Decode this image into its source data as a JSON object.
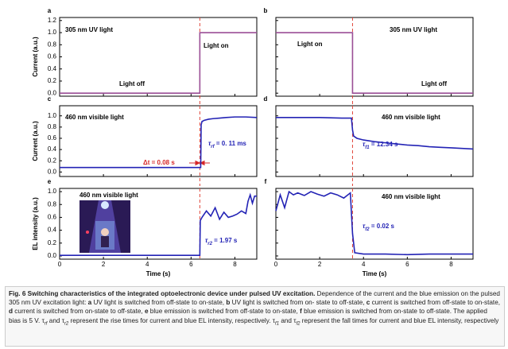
{
  "chart_data": [
    {
      "type": "line",
      "label": "a",
      "ylabel": "Current (a.u.)",
      "xlim": [
        0,
        9
      ],
      "xticks": [
        0,
        2,
        4,
        6,
        8
      ],
      "xtick_labels": false,
      "ylim": [
        -0.05,
        1.25
      ],
      "yticks": [
        {
          "value": 0,
          "label": "0.0"
        },
        {
          "value": 0.2,
          "label": "0.2"
        },
        {
          "value": 0.4,
          "label": "0.4"
        },
        {
          "value": 0.6,
          "label": "0.6"
        },
        {
          "value": 0.8,
          "label": "0.8"
        },
        {
          "value": 1,
          "label": "1.0"
        },
        {
          "value": 1.2,
          "label": "1.2"
        }
      ],
      "vline": 6.4,
      "series": [
        {
          "color": "#9b4f96",
          "x": [
            0,
            6.4,
            6.4,
            9
          ],
          "values": [
            0,
            0,
            1,
            1
          ]
        }
      ],
      "annotations": [
        {
          "text": "305 nm UV light"
        },
        {
          "text": "Light off"
        },
        {
          "text": "Light on"
        }
      ]
    },
    {
      "type": "line",
      "label": "b",
      "xlim": [
        0,
        9
      ],
      "xticks": [
        0,
        2,
        4,
        6,
        8
      ],
      "xtick_labels": false,
      "ylim": [
        -0.05,
        1.25
      ],
      "yticks": [
        0,
        0.2,
        0.4,
        0.6,
        0.8,
        1,
        1.2
      ],
      "ytick_labels": false,
      "vline": 3.5,
      "series": [
        {
          "color": "#9b4f96",
          "x": [
            0,
            3.5,
            3.5,
            9
          ],
          "values": [
            1,
            1,
            0,
            0
          ]
        }
      ],
      "annotations": [
        {
          "text": "305 nm UV light"
        },
        {
          "text": "Light on"
        },
        {
          "text": "Light off"
        }
      ]
    },
    {
      "type": "line",
      "label": "c",
      "ylabel": "Current (a.u.)",
      "xlim": [
        0,
        9
      ],
      "xticks": [
        0,
        2,
        4,
        6,
        8
      ],
      "xtick_labels": false,
      "ylim": [
        -0.08,
        1.18
      ],
      "yticks": [
        {
          "value": 0,
          "label": "0.0"
        },
        {
          "value": 0.2,
          "label": "0.2"
        },
        {
          "value": 0.4,
          "label": "0.4"
        },
        {
          "value": 0.6,
          "label": "0.6"
        },
        {
          "value": 0.8,
          "label": "0.8"
        },
        {
          "value": 1,
          "label": "1.0"
        }
      ],
      "vline": 6.4,
      "series": [
        {
          "color": "#2323b5",
          "x": [
            0,
            2,
            4,
            6,
            6.44,
            6.46,
            6.5,
            6.6,
            6.8,
            7.0,
            7.3,
            7.6,
            8,
            8.5,
            9
          ],
          "values": [
            0.08,
            0.08,
            0.08,
            0.08,
            0.08,
            0.84,
            0.9,
            0.92,
            0.94,
            0.95,
            0.96,
            0.97,
            0.98,
            0.98,
            0.97
          ]
        }
      ],
      "annotations": [
        {
          "text": "460 nm visible light"
        },
        {
          "sym": "τ",
          "sub": "rf",
          "text": " = 0. 11 ms",
          "color": "#2323b5"
        },
        {
          "text": "Δt = 0.08 s",
          "color": "#d62728"
        }
      ]
    },
    {
      "type": "line",
      "label": "d",
      "xlim": [
        0,
        9
      ],
      "xticks": [
        0,
        2,
        4,
        6,
        8
      ],
      "xtick_labels": false,
      "ylim": [
        -0.08,
        1.18
      ],
      "yticks": [
        0,
        0.2,
        0.4,
        0.6,
        0.8,
        1
      ],
      "ytick_labels": false,
      "vline": 3.5,
      "series": [
        {
          "color": "#2323b5",
          "x": [
            0,
            1,
            2,
            3,
            3.45,
            3.5,
            3.55,
            3.7,
            4,
            4.5,
            5,
            5.5,
            6,
            6.5,
            7,
            7.5,
            8,
            8.5,
            9
          ],
          "values": [
            0.97,
            0.97,
            0.97,
            0.96,
            0.96,
            0.75,
            0.64,
            0.6,
            0.57,
            0.54,
            0.52,
            0.5,
            0.48,
            0.47,
            0.45,
            0.44,
            0.43,
            0.42,
            0.41
          ]
        }
      ],
      "annotations": [
        {
          "text": "460 nm visible light"
        },
        {
          "sym": "τ",
          "sub": "f1",
          "text": " = 12.34 s",
          "color": "#2323b5"
        }
      ]
    },
    {
      "type": "line",
      "label": "e",
      "ylabel": "EL intensity (a.u.)",
      "xlabel": "Time (s)",
      "xlim": [
        0,
        9
      ],
      "xticks": [
        0,
        2,
        4,
        6,
        8
      ],
      "xtick_labels": true,
      "ylim": [
        -0.05,
        1.05
      ],
      "yticks": [
        {
          "value": 0,
          "label": "0.0"
        },
        {
          "value": 0.2,
          "label": "0.2"
        },
        {
          "value": 0.4,
          "label": "0.4"
        },
        {
          "value": 0.6,
          "label": "0.6"
        },
        {
          "value": 0.8,
          "label": "0.8"
        },
        {
          "value": 1,
          "label": "1.0"
        }
      ],
      "vline": 6.4,
      "series": [
        {
          "color": "#2323b5",
          "x": [
            0,
            2,
            4,
            6.4,
            6.42,
            6.5,
            6.7,
            6.9,
            7.1,
            7.3,
            7.5,
            7.7,
            7.9,
            8.1,
            8.3,
            8.5,
            8.6,
            8.7,
            8.8,
            8.9,
            9
          ],
          "values": [
            0.01,
            0.01,
            0.01,
            0.01,
            0.55,
            0.6,
            0.7,
            0.62,
            0.75,
            0.57,
            0.68,
            0.6,
            0.62,
            0.65,
            0.7,
            0.66,
            0.85,
            0.95,
            0.82,
            0.93,
            0.93
          ]
        }
      ],
      "annotations": [
        {
          "text": "460 nm visible light"
        },
        {
          "sym": "τ",
          "sub": "r2",
          "text": " = 1.97 s",
          "color": "#2323b5"
        }
      ]
    },
    {
      "type": "line",
      "label": "f",
      "xlabel": "Time (s)",
      "xlim": [
        0,
        9
      ],
      "xticks": [
        0,
        2,
        4,
        6,
        8
      ],
      "xtick_labels": true,
      "ylim": [
        -0.05,
        1.05
      ],
      "yticks": [
        0,
        0.2,
        0.4,
        0.6,
        0.8,
        1
      ],
      "ytick_labels": false,
      "vline": 3.5,
      "series": [
        {
          "color": "#2323b5",
          "x": [
            0,
            0.2,
            0.4,
            0.6,
            0.8,
            1.0,
            1.3,
            1.6,
            1.9,
            2.2,
            2.5,
            2.8,
            3.1,
            3.4,
            3.5,
            3.6,
            4,
            5,
            6,
            7,
            8,
            9
          ],
          "values": [
            0.7,
            0.95,
            0.75,
            1.0,
            0.95,
            0.98,
            0.94,
            1.0,
            0.96,
            0.93,
            0.98,
            0.95,
            0.9,
            0.98,
            0.35,
            0.05,
            0.03,
            0.03,
            0.02,
            0.03,
            0.03,
            0.03
          ]
        }
      ],
      "annotations": [
        {
          "text": "460 nm visible light"
        },
        {
          "sym": "τ",
          "sub": "f2",
          "text": " = 0.02 s",
          "color": "#2323b5"
        }
      ]
    }
  ],
  "caption": {
    "segments": [
      {
        "text": "Fig. 6 Switching characteristics of the integrated optoelectronic device under pulsed UV excitation.",
        "style": "bold"
      },
      {
        "text": " Dependence of the current and the blue emission on the pulsed 305 nm UV excitation light: "
      },
      {
        "text": "a",
        "style": "bold"
      },
      {
        "text": " UV light is switched from off-state to on-state, "
      },
      {
        "text": "b",
        "style": "bold"
      },
      {
        "text": " UV light is switched from on- state to off-state, "
      },
      {
        "text": "c",
        "style": "bold"
      },
      {
        "text": " current is switched from off-state to on-state, "
      },
      {
        "text": "d",
        "style": "bold"
      },
      {
        "text": " current is switched from on-state to off-state, "
      },
      {
        "text": "e",
        "style": "bold"
      },
      {
        "text": " blue emission is switched from off-state to on-state, "
      },
      {
        "text": "f",
        "style": "bold"
      },
      {
        "text": " blue emission is switched from on-state to off-state. The applied bias is 5 V. τ"
      },
      {
        "text": "rf",
        "style": "sub"
      },
      {
        "text": " and τ"
      },
      {
        "text": "r2",
        "style": "sub"
      },
      {
        "text": " represent the rise times for current and blue EL intensity, respectively. τ"
      },
      {
        "text": "f1",
        "style": "sub"
      },
      {
        "text": " and τ"
      },
      {
        "text": "f2",
        "style": "sub"
      },
      {
        "text": " represent the fall times for current and blue EL intensity, respectively"
      }
    ]
  }
}
